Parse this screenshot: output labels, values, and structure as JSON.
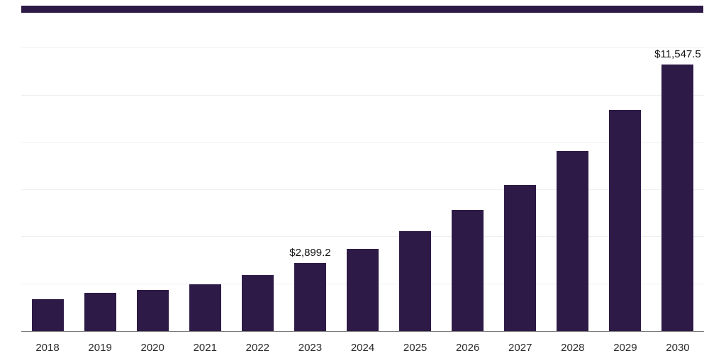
{
  "colors": {
    "accent": "#2e1a47",
    "bar": "#2e1a47",
    "gridline": "#efefef",
    "axis_line": "#7a7a7a"
  },
  "chart_data": {
    "type": "bar",
    "title": "",
    "xlabel": "",
    "ylabel": "",
    "categories": [
      "2018",
      "2019",
      "2020",
      "2021",
      "2022",
      "2023",
      "2024",
      "2025",
      "2026",
      "2027",
      "2028",
      "2029",
      "2030"
    ],
    "values": [
      1350,
      1620,
      1740,
      1980,
      2370,
      2899.2,
      3480,
      4230,
      5130,
      6210,
      7650,
      9390,
      11547.5
    ],
    "point_labels": [
      "",
      "",
      "",
      "",
      "",
      "$2,899.2",
      "",
      "",
      "",
      "",
      "",
      "",
      "$11,547.5"
    ],
    "ylim": [
      0,
      12000
    ],
    "gridline_step": 2000,
    "grid": true,
    "legend": "none",
    "y_axis_tick_labels_visible": false,
    "bar_color": "#2e1a47"
  }
}
